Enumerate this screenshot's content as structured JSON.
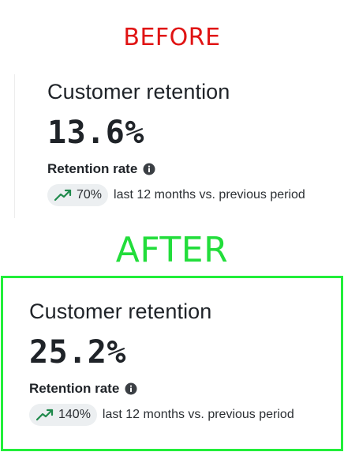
{
  "before": {
    "heading": "BEFORE",
    "card": {
      "title": "Customer retention",
      "value": "13.6%",
      "rate_label": "Retention rate",
      "change_badge": "70%",
      "comparison_text": "last 12 months vs. previous period"
    }
  },
  "after": {
    "heading": "AFTER",
    "card": {
      "title": "Customer retention",
      "value": "25.2%",
      "rate_label": "Retention rate",
      "change_badge": "140%",
      "comparison_text": "last 12 months vs. previous period"
    }
  },
  "icons": {
    "info": "info-icon",
    "trend": "trending-up-icon"
  },
  "colors": {
    "before_heading": "#e01414",
    "after_heading": "#22dd3b",
    "after_border": "#22ee3a",
    "trend_icon": "#1f8a4c",
    "badge_bg": "#eceff1"
  }
}
